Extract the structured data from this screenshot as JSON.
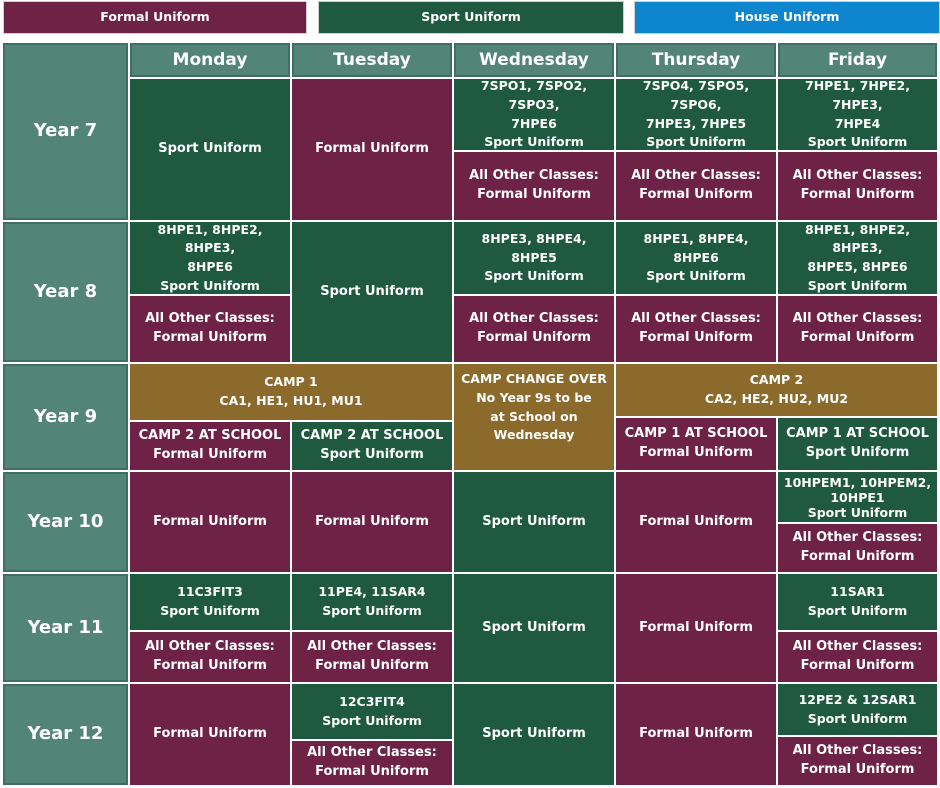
{
  "legend": {
    "formal": "Formal Uniform",
    "sport": "Sport Uniform",
    "house": "House Uniform"
  },
  "colors": {
    "formal": "#6d2246",
    "sport": "#1f5a40",
    "house": "#0d86cf",
    "camp": "#8c6a2c",
    "header": "#538478"
  },
  "days": [
    "Monday",
    "Tuesday",
    "Wednesday",
    "Thursday",
    "Friday"
  ],
  "years": [
    "Year 7",
    "Year 8",
    "Year 9",
    "Year 10",
    "Year 11",
    "Year 12"
  ],
  "common": {
    "sport_uniform": "Sport Uniform",
    "formal_uniform": "Formal Uniform",
    "all_other_formal": "All Other Classes:\nFormal  Uniform"
  },
  "year7": {
    "wed_classes": "7SPO1, 7SPO2, 7SPO3,\n7HPE6",
    "thu_classes": "7SPO4, 7SPO5, 7SPO6,\n7HPE3, 7HPE5",
    "fri_classes": "7HPE1, 7HPE2, 7HPE3,\n7HPE4"
  },
  "year8": {
    "mon_classes": "8HPE1, 8HPE2, 8HPE3,\n8HPE6",
    "wed_classes": "8HPE3, 8HPE4, 8HPE5",
    "thu_classes": "8HPE1, 8HPE4, 8HPE6",
    "fri_classes": "8HPE1, 8HPE2, 8HPE3,\n8HPE5, 8HPE6"
  },
  "year9": {
    "camp1": "CAMP 1\nCA1, HE1, HU1, MU1",
    "changeover": "CAMP CHANGE OVER\nNo Year 9s to be\nat School on\nWednesday",
    "camp2": "CAMP 2\nCA2, HE2, HU2, MU2",
    "camp2_at_school": "CAMP 2 AT SCHOOL",
    "camp1_at_school": "CAMP 1 AT SCHOOL"
  },
  "year10": {
    "fri_classes": "10HPEM1, 10HPEM2,\n10HPE1"
  },
  "year11": {
    "mon_classes": "11C3FIT3",
    "tue_classes": "11PE4, 11SAR4",
    "fri_classes": "11SAR1"
  },
  "year12": {
    "tue_classes": "12C3FIT4",
    "fri_classes": "12PE2 & 12SAR1"
  }
}
